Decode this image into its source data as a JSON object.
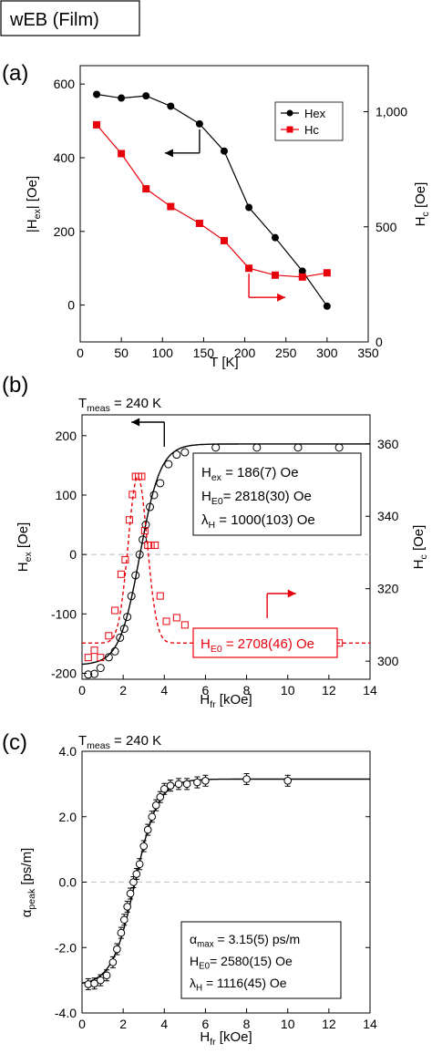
{
  "figure": {
    "title": "wEB (Film)",
    "panel_labels": [
      "(a)",
      "(b)",
      "(c)"
    ]
  },
  "colors": {
    "black": "#000000",
    "red": "#e8000b",
    "grid_dash": "#c8c8c8"
  },
  "chart_data": [
    {
      "panel": "(a)",
      "type": "line",
      "xlabel": "T [K]",
      "ylabel_left": "|H_ex| [Oe]",
      "ylabel_right": "H_c [Oe]",
      "xlim": [
        0,
        350
      ],
      "ylim_left": [
        -100,
        650
      ],
      "ylim_right": [
        0,
        1200
      ],
      "xticks": [
        0,
        50,
        100,
        150,
        200,
        250,
        300,
        350
      ],
      "yticks_left": [
        0,
        200,
        400,
        600
      ],
      "yticks_right": [
        0,
        500,
        1000
      ],
      "ytick_labels_right": [
        "0",
        "500",
        "1,000"
      ],
      "legend": {
        "position": "top-right",
        "entries": [
          "Hex",
          "Hc"
        ]
      },
      "series": [
        {
          "name": "Hex",
          "axis": "left",
          "color": "#000000",
          "marker": "circle",
          "x": [
            20,
            50,
            80,
            110,
            145,
            175,
            205,
            237,
            270,
            300
          ],
          "y": [
            572,
            562,
            568,
            540,
            492,
            418,
            265,
            183,
            92,
            -3
          ]
        },
        {
          "name": "Hc",
          "axis": "right",
          "color": "#e8000b",
          "marker": "square",
          "x": [
            20,
            50,
            80,
            110,
            145,
            175,
            205,
            237,
            270,
            300
          ],
          "y": [
            943,
            818,
            665,
            588,
            515,
            440,
            320,
            290,
            282,
            300
          ]
        }
      ],
      "arrows": [
        {
          "series": "Hex",
          "direction": "left"
        },
        {
          "series": "Hc",
          "direction": "right"
        }
      ]
    },
    {
      "panel": "(b)",
      "type": "scatter",
      "measurement_label": "T_meas = 240 K",
      "xlabel": "H_fr [kOe]",
      "ylabel_left": "H_ex [Oe]",
      "ylabel_right": "H_c [Oe]",
      "xlim": [
        0,
        14
      ],
      "ylim_left": [
        -210,
        235
      ],
      "ylim_right": [
        295,
        368
      ],
      "xticks": [
        0,
        2,
        4,
        6,
        8,
        10,
        12,
        14
      ],
      "yticks_left": [
        -200,
        -100,
        0,
        100,
        200
      ],
      "yticks_right": [
        300,
        320,
        340,
        360
      ],
      "reference_line_y": 0,
      "series": [
        {
          "name": "H_ex",
          "axis": "left",
          "color": "#000000",
          "marker": "open-circle",
          "x": [
            0.3,
            0.6,
            0.9,
            1.3,
            1.6,
            1.85,
            2.05,
            2.2,
            2.4,
            2.6,
            2.8,
            2.95,
            3.1,
            3.3,
            3.5,
            3.8,
            4.2,
            4.6,
            5.0,
            6.5,
            8.5,
            10.5,
            12.5
          ],
          "y": [
            -202,
            -201,
            -191,
            -173,
            -163,
            -140,
            -125,
            -105,
            -70,
            -35,
            0,
            25,
            50,
            80,
            100,
            120,
            152,
            168,
            172,
            180,
            180,
            180,
            180
          ]
        },
        {
          "name": "H_c",
          "axis": "right",
          "color": "#e8000b",
          "marker": "open-square",
          "x": [
            0.3,
            0.6,
            0.9,
            1.3,
            1.6,
            1.9,
            2.1,
            2.3,
            2.45,
            2.6,
            2.75,
            2.9,
            3.05,
            3.2,
            3.35,
            3.55,
            3.8,
            4.1,
            4.6,
            5.0,
            6.5,
            8.5,
            10.5,
            12.5
          ],
          "y": [
            301,
            303,
            301,
            307,
            314,
            324,
            328,
            339,
            346,
            351,
            351,
            351,
            336,
            332,
            332,
            332,
            318,
            311,
            312,
            310,
            305,
            305,
            305,
            305
          ]
        }
      ],
      "fits": [
        {
          "series": "H_ex",
          "style": "solid",
          "color": "#000000",
          "label": "H_ex = 186(7) Oe",
          "H_E0": "2818(30) Oe",
          "lambda_H": "1000(103) Oe"
        },
        {
          "series": "H_c",
          "style": "dashed",
          "color": "#e8000b",
          "H_E0": "2708(46) Oe"
        }
      ],
      "annotation_lines": [
        "H_ex  = 186(7) Oe",
        "H_E0 = 2818(30) Oe",
        "λ_H = 1000(103) Oe"
      ],
      "red_annotation": "H_E0 = 2708(46) Oe",
      "arrows": [
        {
          "series": "H_ex",
          "direction": "left"
        },
        {
          "series": "H_c",
          "direction": "right"
        }
      ]
    },
    {
      "panel": "(c)",
      "type": "scatter",
      "measurement_label": "T_meas = 240 K",
      "xlabel": "H_fr [kOe]",
      "ylabel": "α_peak [ps/m]",
      "xlim": [
        0,
        14
      ],
      "ylim": [
        -4.0,
        4.0
      ],
      "xticks": [
        0,
        2,
        4,
        6,
        8,
        10,
        12,
        14
      ],
      "yticks": [
        -4.0,
        -2.0,
        0.0,
        2.0,
        4.0
      ],
      "reference_line_y": 0,
      "series": [
        {
          "name": "α_peak",
          "color": "#000000",
          "marker": "open-circle-errorbar",
          "x": [
            0.3,
            0.6,
            0.9,
            1.2,
            1.5,
            1.7,
            1.9,
            2.05,
            2.2,
            2.35,
            2.5,
            2.65,
            2.8,
            3.0,
            3.2,
            3.4,
            3.6,
            3.8,
            4.0,
            4.3,
            4.7,
            5.1,
            5.6,
            6.0,
            8.0,
            10.0
          ],
          "y": [
            -3.12,
            -3.1,
            -3.0,
            -2.85,
            -2.45,
            -2.05,
            -1.55,
            -1.15,
            -0.75,
            -0.35,
            0.0,
            0.25,
            0.55,
            1.1,
            1.6,
            2.0,
            2.35,
            2.6,
            2.85,
            2.95,
            3.0,
            3.0,
            3.05,
            3.1,
            3.15,
            3.1
          ]
        }
      ],
      "fits": [
        {
          "series": "α_peak",
          "style": "solid",
          "color": "#000000"
        }
      ],
      "annotation_lines": [
        "α_max = 3.15(5) ps/m",
        "H_E0= 2580(15) Oe",
        "λ_H = 1116(45) Oe"
      ]
    }
  ]
}
